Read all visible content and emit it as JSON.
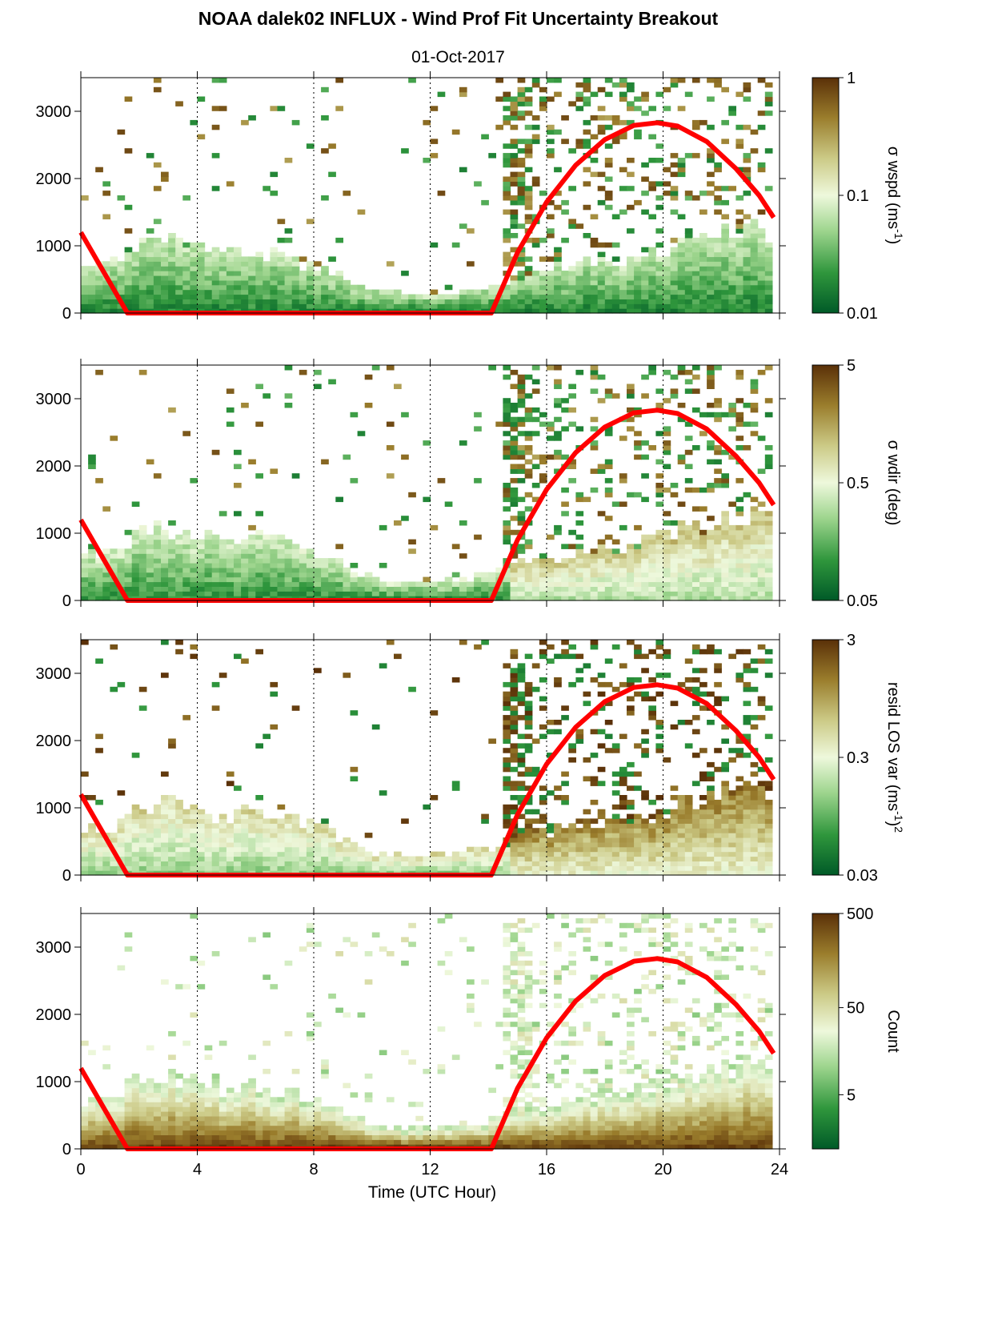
{
  "figure": {
    "title": "NOAA dalek02 INFLUX - Wind Prof Fit Uncertainty Breakout",
    "subtitle": "01-Oct-2017",
    "xlabel": "Time (UTC Hour)",
    "xticks": [
      "0",
      "4",
      "8",
      "12",
      "16",
      "20",
      "24"
    ],
    "yticks": [
      "0",
      "1000",
      "2000",
      "3000"
    ]
  },
  "colors": {
    "background": "#ffffff",
    "sun_line": "#ff0000",
    "colormap": [
      "#005a28",
      "#2f963c",
      "#9ed58e",
      "#eef8dc",
      "#cbc985",
      "#9a7d2c",
      "#5a3008"
    ]
  },
  "chart_data": [
    {
      "type": "heatmap",
      "panel": "sigma-wspd",
      "cbar_label": "σ wspd (ms",
      "cbar_sup": "-1",
      "cbar_suffix": ")",
      "cbar_ticks": [
        "1",
        "0.1",
        "0.01"
      ],
      "cbar_scale": "log",
      "cbar_range": [
        0.01,
        1
      ],
      "xlim": [
        0,
        24
      ],
      "ylim": [
        0,
        3500
      ],
      "grid": "dotted vertical at 4, 8, 12, 16, 20",
      "mixing_height_base": [
        [
          0,
          700
        ],
        [
          1,
          650
        ],
        [
          2,
          1000
        ],
        [
          3,
          1050
        ],
        [
          4,
          950
        ],
        [
          5,
          850
        ],
        [
          6,
          900
        ],
        [
          7,
          800
        ],
        [
          8,
          700
        ],
        [
          9,
          500
        ],
        [
          10,
          300
        ],
        [
          11,
          250
        ],
        [
          12,
          250
        ],
        [
          13,
          300
        ],
        [
          14,
          350
        ],
        [
          15,
          500
        ],
        [
          16,
          600
        ],
        [
          17,
          700
        ],
        [
          18,
          750
        ],
        [
          19,
          800
        ],
        [
          20,
          900
        ],
        [
          21,
          1050
        ],
        [
          22,
          1200
        ],
        [
          23,
          1250
        ],
        [
          23.8,
          1150
        ]
      ],
      "sun_elevation_proxy": [
        [
          0,
          1200
        ],
        [
          1.6,
          0
        ],
        [
          14.1,
          0
        ],
        [
          15,
          900
        ],
        [
          16,
          1650
        ],
        [
          17,
          2200
        ],
        [
          18,
          2580
        ],
        [
          19,
          2790
        ],
        [
          19.8,
          2830
        ],
        [
          20.5,
          2780
        ],
        [
          21.5,
          2550
        ],
        [
          22.5,
          2150
        ],
        [
          23.3,
          1750
        ],
        [
          23.8,
          1420
        ]
      ]
    },
    {
      "type": "heatmap",
      "panel": "sigma-wdir",
      "cbar_label": "σ wdir (deg)",
      "cbar_ticks": [
        "5",
        "0.5",
        "0.05"
      ],
      "cbar_scale": "log",
      "cbar_range": [
        0.05,
        5
      ],
      "xlim": [
        0,
        24
      ],
      "ylim": [
        0,
        3500
      ]
    },
    {
      "type": "heatmap",
      "panel": "resid-los-var",
      "cbar_label": "resid LOS var (ms",
      "cbar_sup": "-1",
      "cbar_suffix": ")",
      "cbar_sup2": "2",
      "cbar_ticks": [
        "3",
        "0.3",
        "0.03"
      ],
      "cbar_scale": "log",
      "cbar_range": [
        0.03,
        3
      ],
      "xlim": [
        0,
        24
      ],
      "ylim": [
        0,
        3500
      ]
    },
    {
      "type": "heatmap",
      "panel": "count",
      "cbar_label": "Count",
      "cbar_ticks": [
        "500",
        "50",
        "5"
      ],
      "cbar_scale": "log",
      "cbar_range": [
        1,
        500
      ],
      "xlim": [
        0,
        24
      ],
      "ylim": [
        0,
        3500
      ]
    }
  ]
}
